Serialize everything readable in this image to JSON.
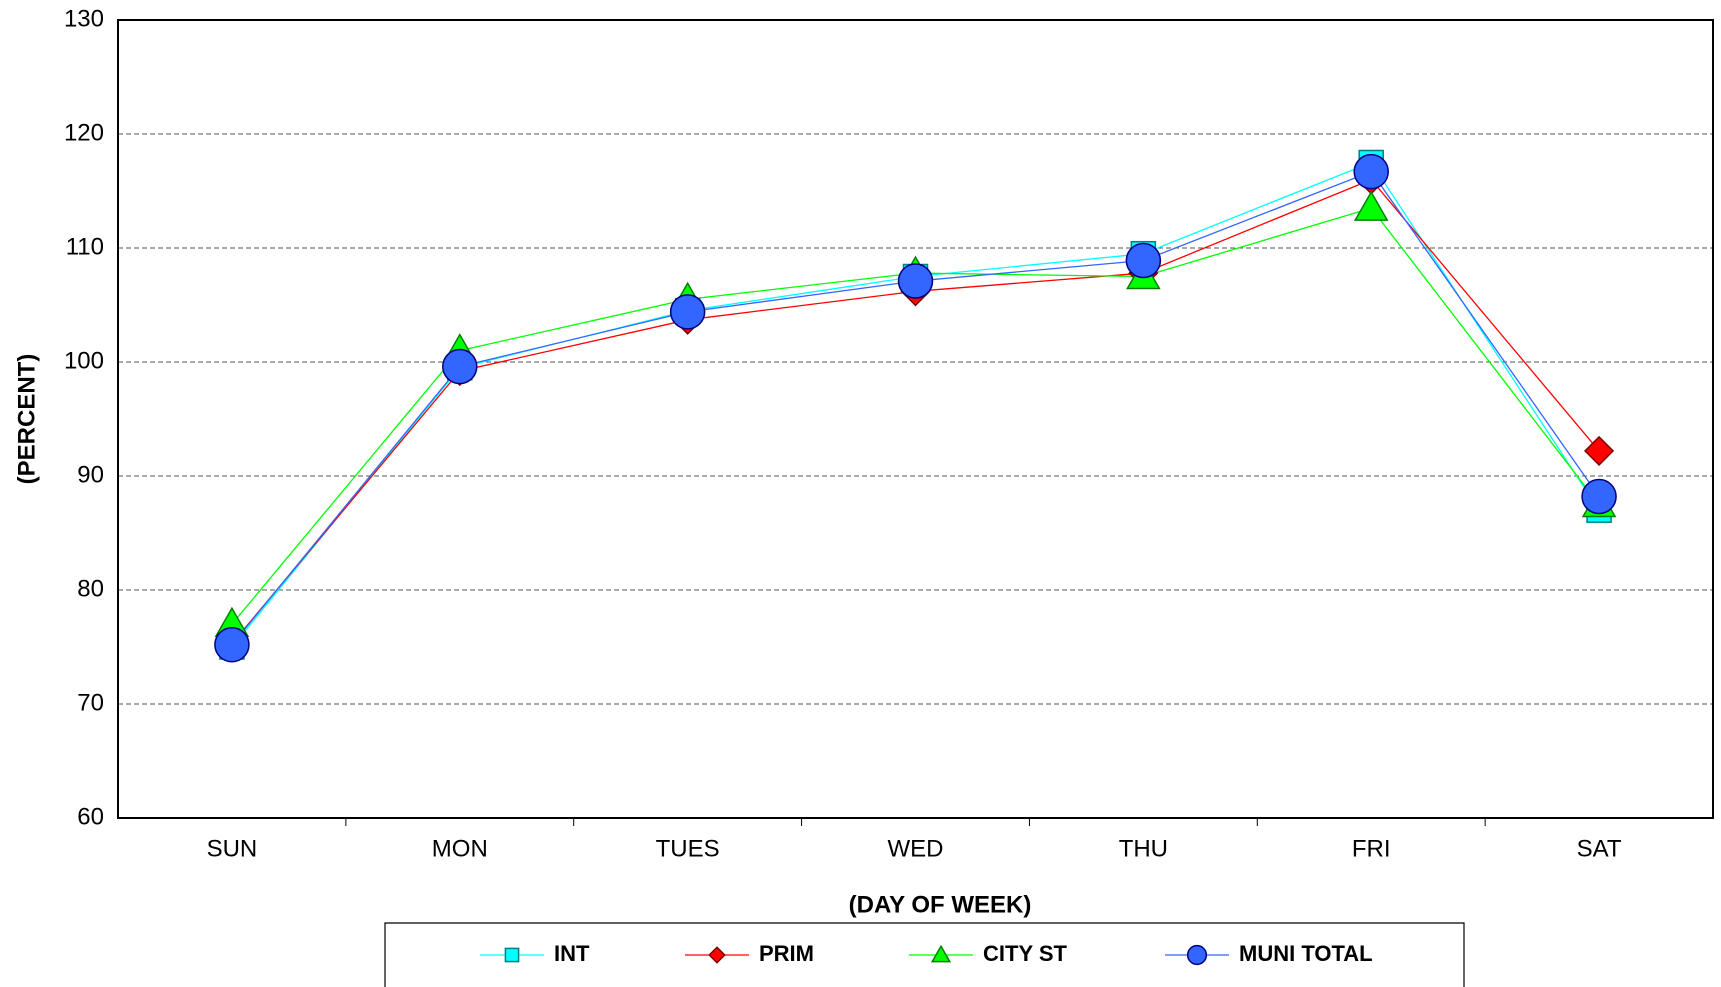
{
  "chart_data": {
    "type": "line",
    "y_label": "(PERCENT)",
    "x_label": "(DAY OF WEEK)",
    "categories": [
      "SUN",
      "MON",
      "TUES",
      "WED",
      "THU",
      "FRI",
      "SAT"
    ],
    "ylim": [
      60,
      130
    ],
    "yticks": [
      60,
      70,
      80,
      90,
      100,
      110,
      120,
      130
    ],
    "grid": true,
    "legend": "bottom",
    "series": [
      {
        "name": "INT",
        "color": "#00ffff",
        "edge": "#008080",
        "marker": "square",
        "values": [
          75,
          99.5,
          104.5,
          107.5,
          109.5,
          117.5,
          87
        ]
      },
      {
        "name": "PRIM",
        "color": "#ff0000",
        "edge": "#800000",
        "marker": "diamond",
        "values": [
          75.3,
          99.2,
          103.7,
          106.2,
          107.8,
          116,
          92.2
        ]
      },
      {
        "name": "CITY ST",
        "color": "#00ff00",
        "edge": "#008000",
        "marker": "triangle",
        "values": [
          77,
          101,
          105.5,
          107.8,
          107.5,
          113.5,
          87.5
        ]
      },
      {
        "name": "MUNI TOTAL",
        "color": "#3366ff",
        "edge": "#000080",
        "marker": "circle",
        "values": [
          75.2,
          99.6,
          104.4,
          107.1,
          108.9,
          116.7,
          88.2
        ]
      }
    ]
  }
}
